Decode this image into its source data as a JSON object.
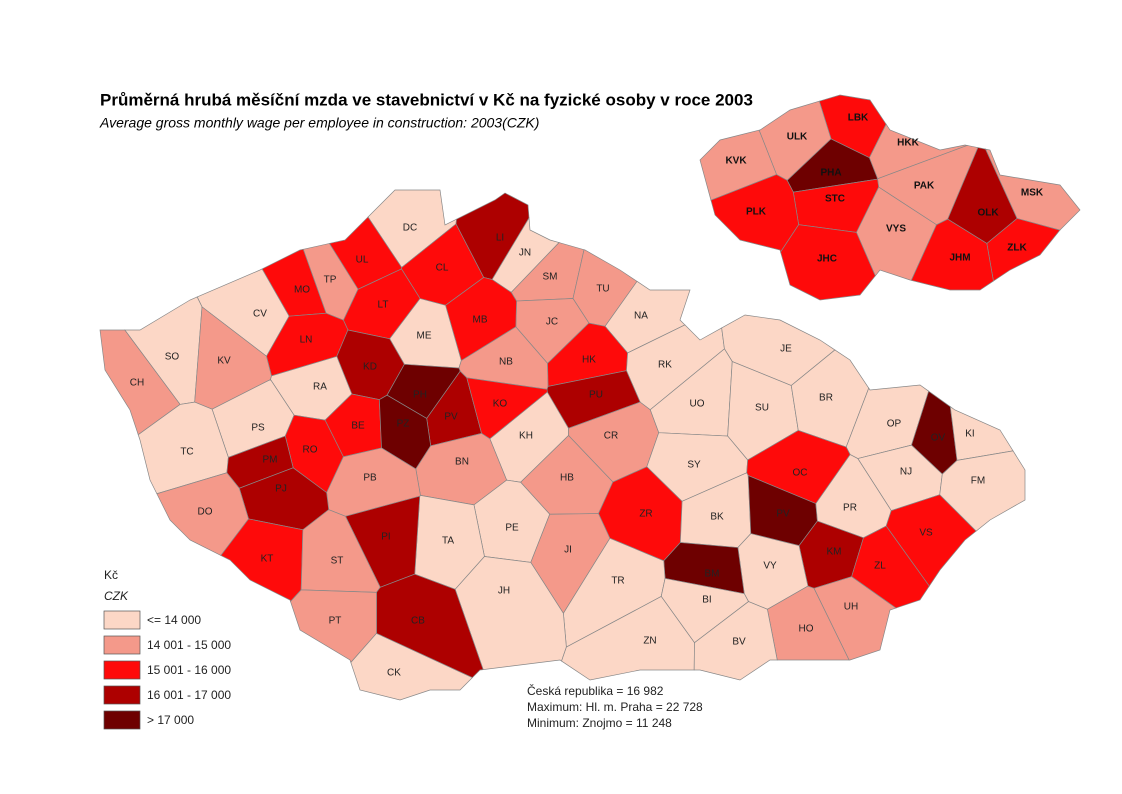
{
  "title": "Průměrná hrubá měsíční mzda ve stavebnictví v Kč na fyzické osoby v roce 2003",
  "subtitle": "Average gross monthly wage per employee in construction: 2003(CZK)",
  "legend": {
    "title": "Kč",
    "subtitle": "CZK",
    "items": [
      {
        "label": "<= 14 000",
        "color": "#fcd7c6"
      },
      {
        "label": "14 001 - 15 000",
        "color": "#f4998a"
      },
      {
        "label": "15 001 - 16 000",
        "color": "#fe0a0a"
      },
      {
        "label": "16 001 - 17 000",
        "color": "#ad0000"
      },
      {
        "label": "> 17 000",
        "color": "#6e0000"
      }
    ]
  },
  "stats": [
    "Česká republika =  16 982",
    "Maximum: Hl. m. Praha =  22 728",
    "Minimum: Znojmo  = 11 248"
  ],
  "districts": [
    {
      "label": "DC",
      "color": "#fcd7c6"
    },
    {
      "label": "LI",
      "color": "#ad0000"
    },
    {
      "label": "JN",
      "color": "#fcd7c6"
    },
    {
      "label": "CL",
      "color": "#fe0a0a"
    },
    {
      "label": "UL",
      "color": "#fe0a0a"
    },
    {
      "label": "TP",
      "color": "#f4998a"
    },
    {
      "label": "MO",
      "color": "#fe0a0a"
    },
    {
      "label": "SM",
      "color": "#f4998a"
    },
    {
      "label": "TU",
      "color": "#f4998a"
    },
    {
      "label": "LT",
      "color": "#fe0a0a"
    },
    {
      "label": "CV",
      "color": "#fcd7c6"
    },
    {
      "label": "NA",
      "color": "#fcd7c6"
    },
    {
      "label": "JC",
      "color": "#f4998a"
    },
    {
      "label": "MB",
      "color": "#fe0a0a"
    },
    {
      "label": "ME",
      "color": "#fcd7c6"
    },
    {
      "label": "LN",
      "color": "#fe0a0a"
    },
    {
      "label": "SO",
      "color": "#fcd7c6"
    },
    {
      "label": "KV",
      "color": "#f4998a"
    },
    {
      "label": "CH",
      "color": "#f4998a"
    },
    {
      "label": "KD",
      "color": "#ad0000"
    },
    {
      "label": "NB",
      "color": "#f4998a"
    },
    {
      "label": "HK",
      "color": "#fe0a0a"
    },
    {
      "label": "RK",
      "color": "#fcd7c6"
    },
    {
      "label": "JE",
      "color": "#fcd7c6"
    },
    {
      "label": "RA",
      "color": "#fcd7c6"
    },
    {
      "label": "PH",
      "color": "#6e0000"
    },
    {
      "label": "PV",
      "color": "#ad0000"
    },
    {
      "label": "PU",
      "color": "#ad0000"
    },
    {
      "label": "KO",
      "color": "#fe0a0a"
    },
    {
      "label": "UO",
      "color": "#fcd7c6"
    },
    {
      "label": "SU",
      "color": "#fcd7c6"
    },
    {
      "label": "BR",
      "color": "#fcd7c6"
    },
    {
      "label": "PS",
      "color": "#fcd7c6"
    },
    {
      "label": "BE",
      "color": "#fe0a0a"
    },
    {
      "label": "PZ",
      "color": "#6e0000"
    },
    {
      "label": "KH",
      "color": "#fcd7c6"
    },
    {
      "label": "CR",
      "color": "#f4998a"
    },
    {
      "label": "OP",
      "color": "#fcd7c6"
    },
    {
      "label": "OV",
      "color": "#6e0000"
    },
    {
      "label": "KI",
      "color": "#fcd7c6"
    },
    {
      "label": "TC",
      "color": "#fcd7c6"
    },
    {
      "label": "RO",
      "color": "#fe0a0a"
    },
    {
      "label": "BN",
      "color": "#f4998a"
    },
    {
      "label": "SY",
      "color": "#fcd7c6"
    },
    {
      "label": "OC",
      "color": "#fe0a0a"
    },
    {
      "label": "NJ",
      "color": "#fcd7c6"
    },
    {
      "label": "PM",
      "color": "#ad0000"
    },
    {
      "label": "HB",
      "color": "#f4998a"
    },
    {
      "label": "PB",
      "color": "#f4998a"
    },
    {
      "label": "FM",
      "color": "#fcd7c6"
    },
    {
      "label": "PJ",
      "color": "#ad0000"
    },
    {
      "label": "DO",
      "color": "#f4998a"
    },
    {
      "label": "ZR",
      "color": "#fe0a0a"
    },
    {
      "label": "BK",
      "color": "#fcd7c6"
    },
    {
      "label": "PV",
      "color": "#6e0000"
    },
    {
      "label": "PR",
      "color": "#fcd7c6"
    },
    {
      "label": "PE",
      "color": "#fcd7c6"
    },
    {
      "label": "TA",
      "color": "#fcd7c6"
    },
    {
      "label": "PI",
      "color": "#ad0000"
    },
    {
      "label": "VS",
      "color": "#fe0a0a"
    },
    {
      "label": "KM",
      "color": "#ad0000"
    },
    {
      "label": "JI",
      "color": "#f4998a"
    },
    {
      "label": "KT",
      "color": "#fe0a0a"
    },
    {
      "label": "ST",
      "color": "#f4998a"
    },
    {
      "label": "VY",
      "color": "#fcd7c6"
    },
    {
      "label": "ZL",
      "color": "#fe0a0a"
    },
    {
      "label": "BM",
      "color": "#6e0000"
    },
    {
      "label": "TR",
      "color": "#fcd7c6"
    },
    {
      "label": "JH",
      "color": "#fcd7c6"
    },
    {
      "label": "BI",
      "color": "#fcd7c6"
    },
    {
      "label": "UH",
      "color": "#f4998a"
    },
    {
      "label": "CB",
      "color": "#ad0000"
    },
    {
      "label": "PT",
      "color": "#f4998a"
    },
    {
      "label": "HO",
      "color": "#f4998a"
    },
    {
      "label": "ZN",
      "color": "#fcd7c6"
    },
    {
      "label": "BV",
      "color": "#fcd7c6"
    },
    {
      "label": "CK",
      "color": "#fcd7c6"
    }
  ],
  "regions": [
    {
      "label": "LBK",
      "color": "#fe0a0a"
    },
    {
      "label": "ULK",
      "color": "#f4998a"
    },
    {
      "label": "HKK",
      "color": "#f4998a"
    },
    {
      "label": "KVK",
      "color": "#f4998a"
    },
    {
      "label": "PHA",
      "color": "#6e0000"
    },
    {
      "label": "PAK",
      "color": "#f4998a"
    },
    {
      "label": "MSK",
      "color": "#f4998a"
    },
    {
      "label": "STC",
      "color": "#fe0a0a"
    },
    {
      "label": "OLK",
      "color": "#ad0000"
    },
    {
      "label": "PLK",
      "color": "#fe0a0a"
    },
    {
      "label": "VYS",
      "color": "#f4998a"
    },
    {
      "label": "ZLK",
      "color": "#fe0a0a"
    },
    {
      "label": "JHM",
      "color": "#fe0a0a"
    },
    {
      "label": "JHC",
      "color": "#fe0a0a"
    }
  ]
}
